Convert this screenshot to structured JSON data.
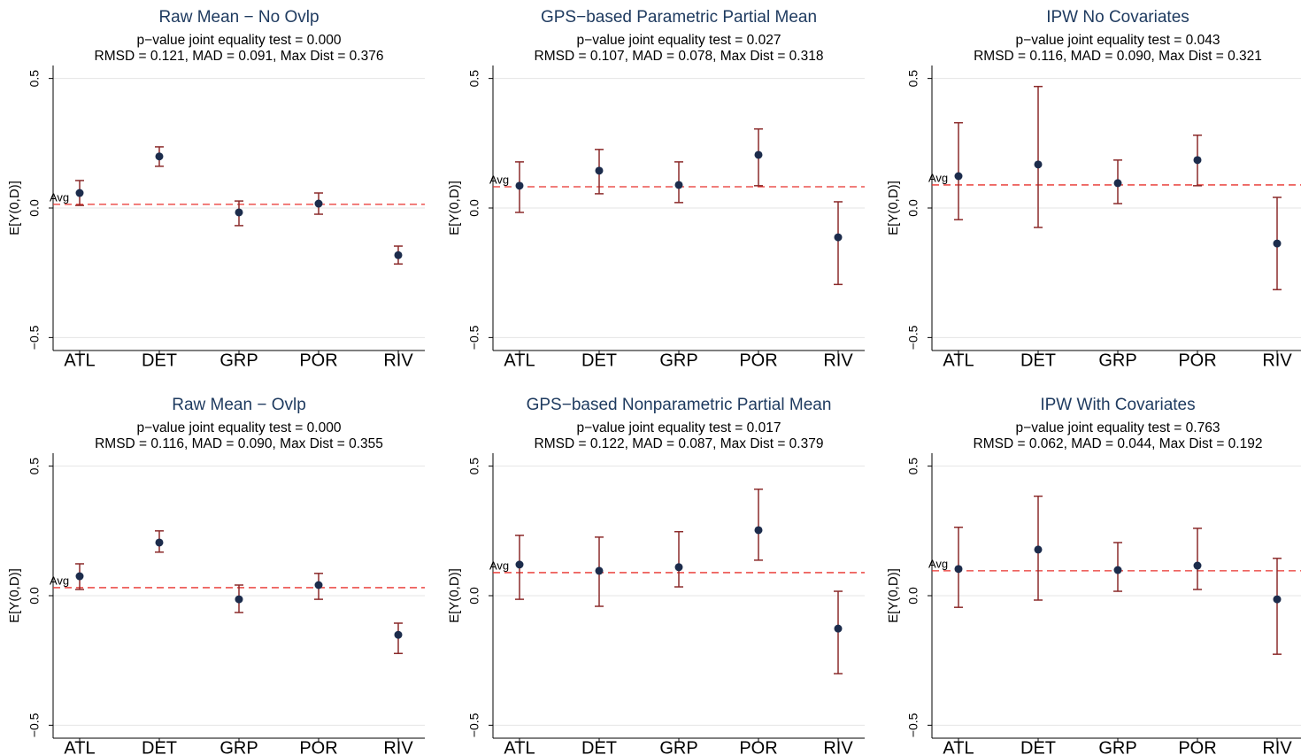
{
  "chart_data": [
    {
      "type": "errorbar",
      "title": "Raw Mean − No Ovlp",
      "subtitle": [
        "p−value joint equality test = 0.000",
        "RMSD = 0.121, MAD = 0.091, Max Dist = 0.376"
      ],
      "y_label": "E[Y(0,D)]",
      "annotation": "Avg",
      "avg": 0.014,
      "categories": [
        "ATL",
        "DET",
        "GRP",
        "POR",
        "RIV"
      ],
      "values": [
        0.058,
        0.199,
        -0.017,
        0.017,
        -0.182
      ],
      "lower": [
        0.01,
        0.161,
        -0.068,
        -0.024,
        -0.216
      ],
      "upper": [
        0.106,
        0.236,
        0.027,
        0.058,
        -0.147
      ],
      "ylim": [
        -0.55,
        0.55
      ],
      "yticks": [
        {
          "value": -0.5,
          "label": "−0.5"
        },
        {
          "value": 0,
          "label": "0.0"
        },
        0.5
      ],
      "grid": true,
      "point_color": "#1c2c4c",
      "bar_color": "#8b2a2a",
      "avg_color": "#e8302c"
    },
    {
      "type": "errorbar",
      "title": "GPS−based Parametric Partial Mean",
      "subtitle": [
        "p−value joint equality test = 0.027",
        "RMSD = 0.107, MAD = 0.078, Max Dist = 0.318"
      ],
      "y_label": "E[Y(0,D)]",
      "annotation": "Avg",
      "avg": 0.082,
      "categories": [
        "ATL",
        "DET",
        "GRP",
        "POR",
        "RIV"
      ],
      "values": [
        0.086,
        0.144,
        0.089,
        0.205,
        -0.113
      ],
      "lower": [
        -0.017,
        0.055,
        0.021,
        0.086,
        -0.295
      ],
      "upper": [
        0.178,
        0.226,
        0.178,
        0.305,
        0.024
      ],
      "ylim": [
        -0.55,
        0.55
      ],
      "yticks": [
        {
          "value": -0.5,
          "label": "−0.5"
        },
        {
          "value": 0,
          "label": "0.0"
        },
        0.5
      ],
      "grid": true,
      "point_color": "#1c2c4c",
      "bar_color": "#8b2a2a",
      "avg_color": "#e8302c"
    },
    {
      "type": "errorbar",
      "title": "IPW No Covariates",
      "subtitle": [
        "p−value joint equality test = 0.043",
        "RMSD = 0.116, MAD = 0.090, Max Dist = 0.321"
      ],
      "y_label": "E[Y(0,D)]",
      "annotation": "Avg",
      "avg": 0.089,
      "categories": [
        "ATL",
        "DET",
        "GRP",
        "POR",
        "RIV"
      ],
      "values": [
        0.123,
        0.168,
        0.096,
        0.185,
        -0.137
      ],
      "lower": [
        -0.045,
        -0.075,
        0.017,
        0.086,
        -0.315
      ],
      "upper": [
        0.329,
        0.469,
        0.185,
        0.281,
        0.041
      ],
      "ylim": [
        -0.55,
        0.55
      ],
      "yticks": [
        {
          "value": -0.5,
          "label": "−0.5"
        },
        {
          "value": 0,
          "label": "0.0"
        },
        0.5
      ],
      "grid": true,
      "point_color": "#1c2c4c",
      "bar_color": "#8b2a2a",
      "avg_color": "#e8302c"
    },
    {
      "type": "errorbar",
      "title": "Raw Mean − Ovlp",
      "subtitle": [
        "p−value joint equality test = 0.000",
        "RMSD = 0.116, MAD = 0.090, Max Dist = 0.355"
      ],
      "y_label": "E[Y(0,D)]",
      "annotation": "Avg",
      "avg": 0.031,
      "categories": [
        "ATL",
        "DET",
        "GRP",
        "POR",
        "RIV"
      ],
      "values": [
        0.075,
        0.205,
        -0.014,
        0.041,
        -0.151
      ],
      "lower": [
        0.024,
        0.168,
        -0.065,
        -0.014,
        -0.223
      ],
      "upper": [
        0.123,
        0.25,
        0.041,
        0.086,
        -0.106
      ],
      "ylim": [
        -0.55,
        0.55
      ],
      "yticks": [
        {
          "value": -0.5,
          "label": "−0.5"
        },
        {
          "value": 0,
          "label": "0.0"
        },
        0.5
      ],
      "grid": true,
      "point_color": "#1c2c4c",
      "bar_color": "#8b2a2a",
      "avg_color": "#e8302c"
    },
    {
      "type": "errorbar",
      "title": "GPS−based Nonparametric Partial Mean",
      "subtitle": [
        "p−value joint equality test = 0.017",
        "RMSD = 0.122, MAD = 0.087, Max Dist = 0.379"
      ],
      "y_label": "E[Y(0,D)]",
      "annotation": "Avg",
      "avg": 0.089,
      "categories": [
        "ATL",
        "DET",
        "GRP",
        "POR",
        "RIV"
      ],
      "values": [
        0.12,
        0.096,
        0.11,
        0.253,
        -0.127
      ],
      "lower": [
        -0.014,
        -0.041,
        0.034,
        0.137,
        -0.301
      ],
      "upper": [
        0.233,
        0.226,
        0.247,
        0.411,
        0.017
      ],
      "ylim": [
        -0.55,
        0.55
      ],
      "yticks": [
        {
          "value": -0.5,
          "label": "−0.5"
        },
        {
          "value": 0,
          "label": "0.0"
        },
        0.5
      ],
      "grid": true,
      "point_color": "#1c2c4c",
      "bar_color": "#8b2a2a",
      "avg_color": "#e8302c"
    },
    {
      "type": "errorbar",
      "title": "IPW With Covariates",
      "subtitle": [
        "p−value joint equality test = 0.763",
        "RMSD = 0.062, MAD = 0.044, Max Dist = 0.192"
      ],
      "y_label": "E[Y(0,D)]",
      "annotation": "Avg",
      "avg": 0.096,
      "categories": [
        "ATL",
        "DET",
        "GRP",
        "POR",
        "RIV"
      ],
      "values": [
        0.103,
        0.178,
        0.099,
        0.116,
        -0.014
      ],
      "lower": [
        -0.045,
        -0.017,
        0.017,
        0.024,
        -0.226
      ],
      "upper": [
        0.264,
        0.384,
        0.205,
        0.26,
        0.144
      ],
      "ylim": [
        -0.55,
        0.55
      ],
      "yticks": [
        {
          "value": -0.5,
          "label": "−0.5"
        },
        {
          "value": 0,
          "label": "0.0"
        },
        0.5
      ],
      "grid": true,
      "point_color": "#1c2c4c",
      "bar_color": "#8b2a2a",
      "avg_color": "#e8302c"
    }
  ]
}
